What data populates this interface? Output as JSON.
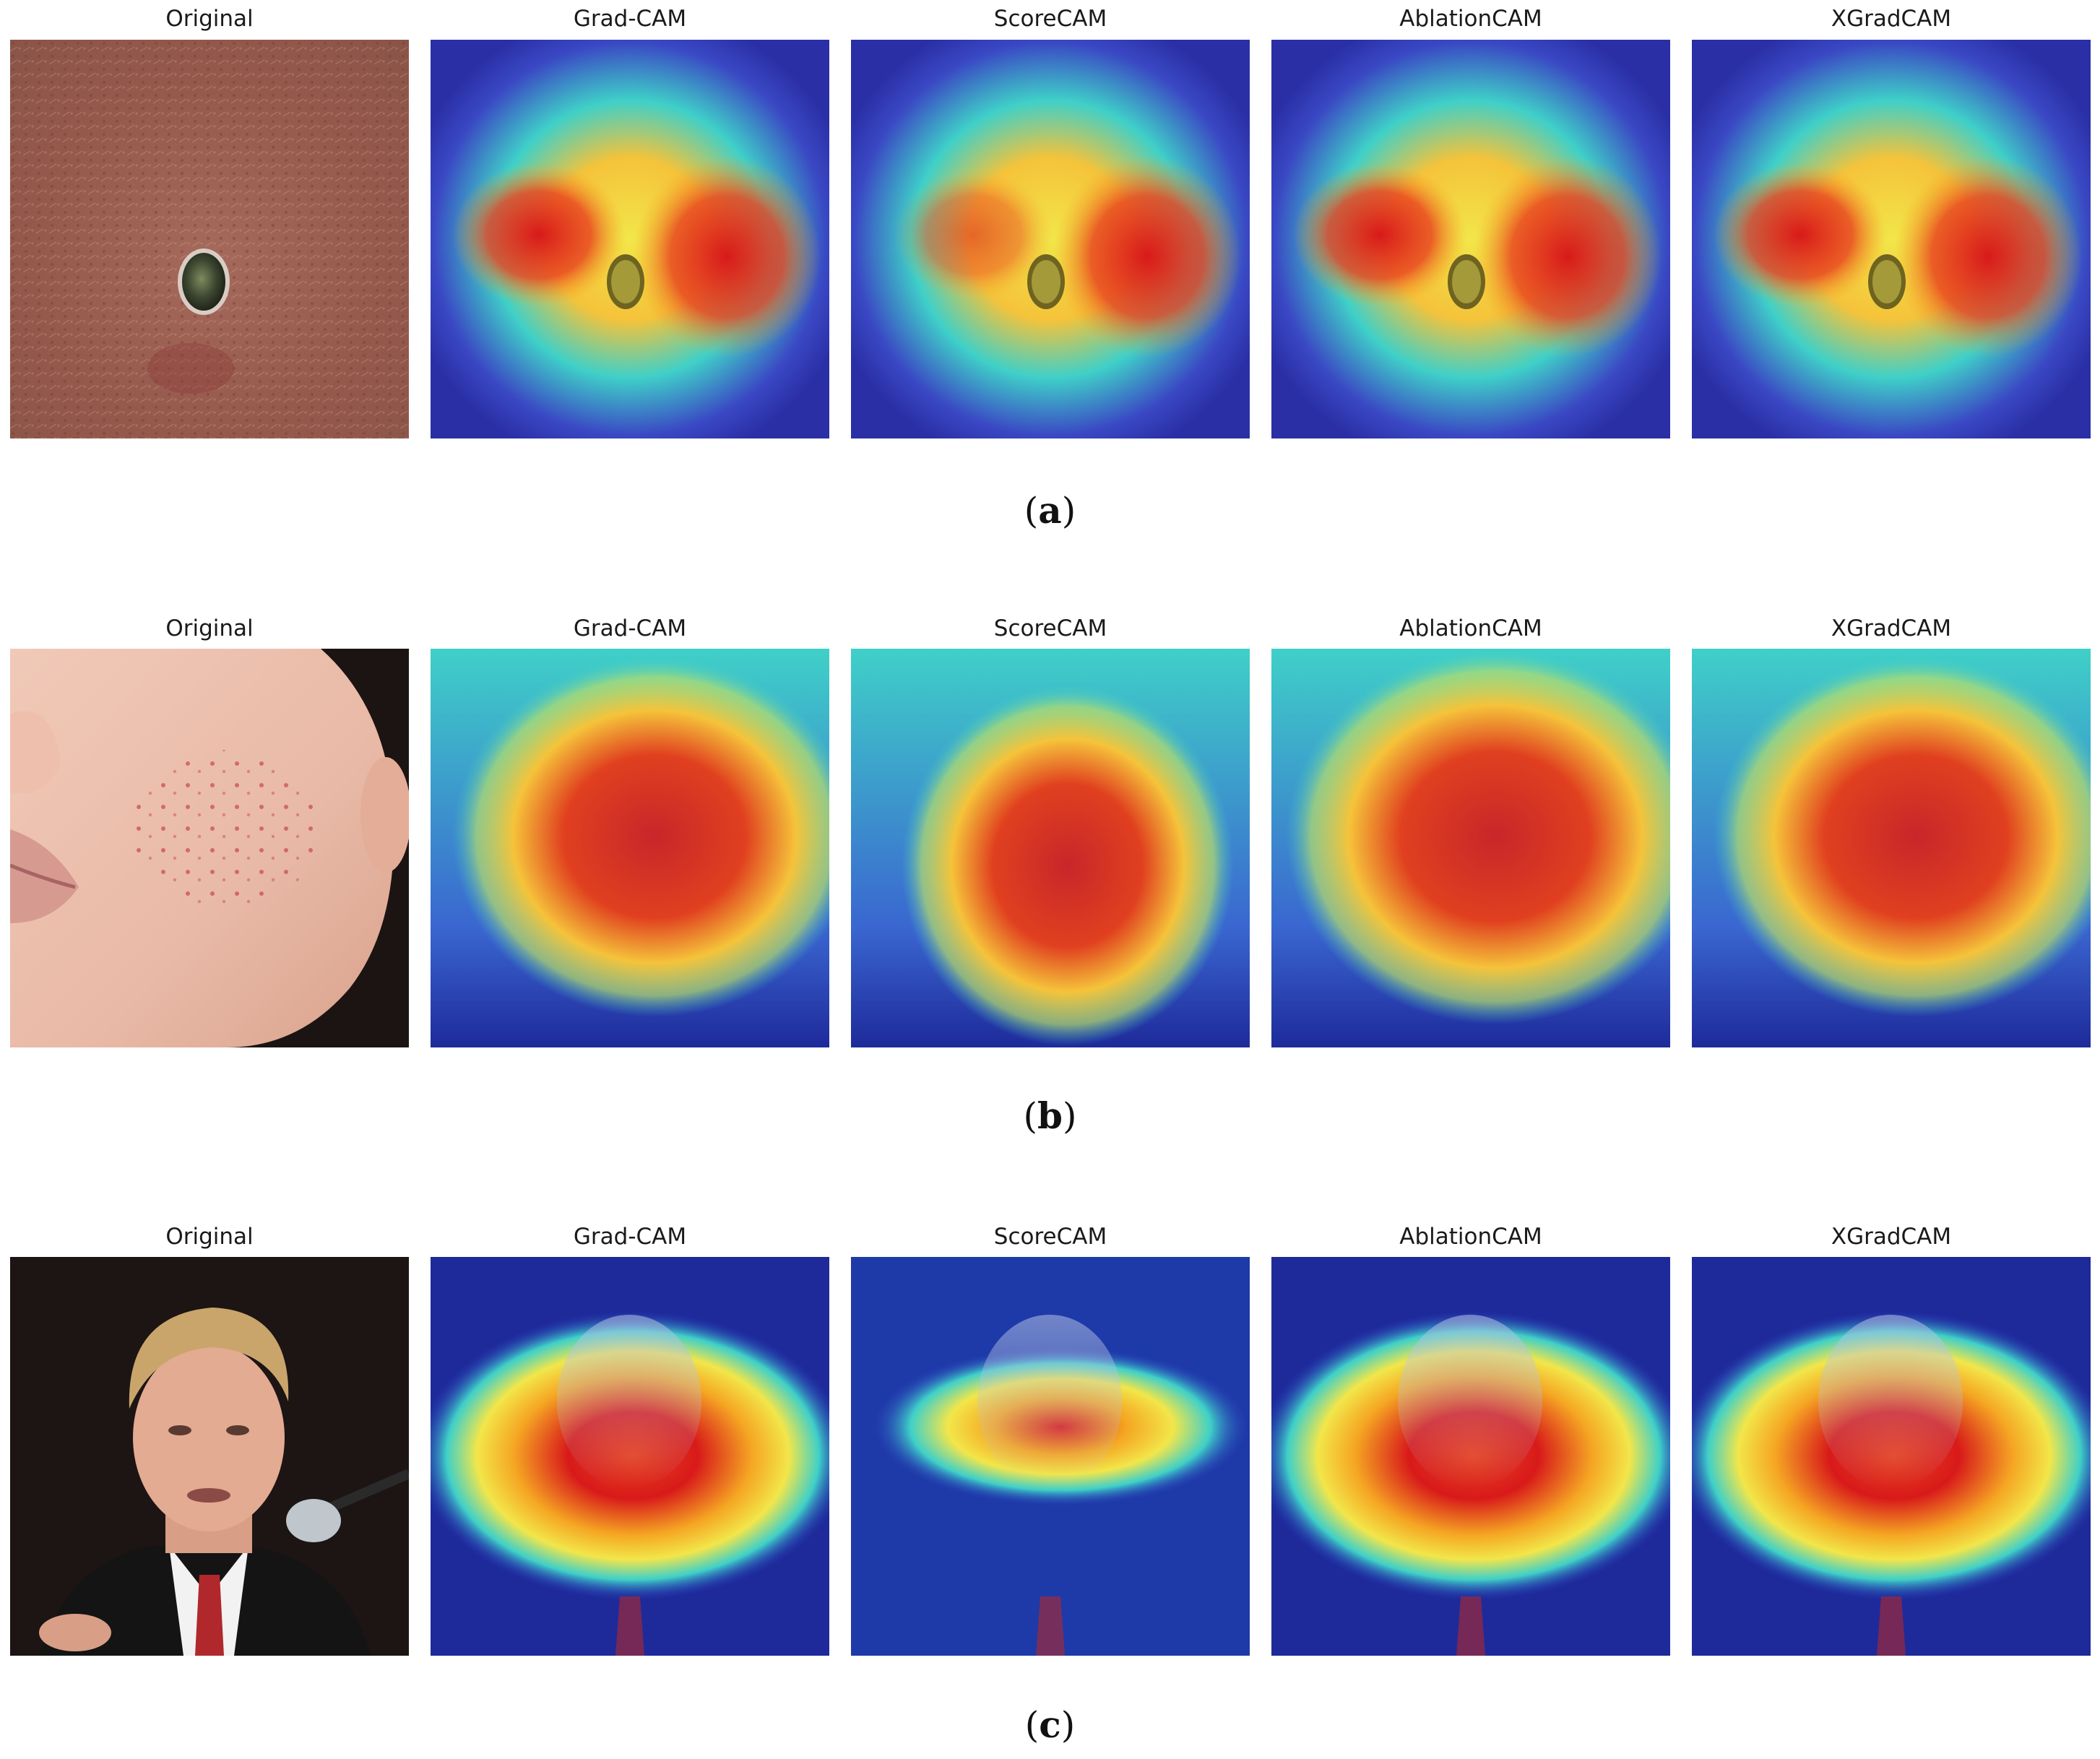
{
  "figure": {
    "rows": [
      {
        "label": "a",
        "subject": "skin-lesion",
        "panels": [
          {
            "title": "Original",
            "kind": "original"
          },
          {
            "title": "Grad-CAM",
            "kind": "heatmap"
          },
          {
            "title": "ScoreCAM",
            "kind": "heatmap"
          },
          {
            "title": "AblationCAM",
            "kind": "heatmap"
          },
          {
            "title": "XGradCAM",
            "kind": "heatmap"
          }
        ]
      },
      {
        "label": "b",
        "subject": "acne-cheek",
        "panels": [
          {
            "title": "Original",
            "kind": "original"
          },
          {
            "title": "Grad-CAM",
            "kind": "heatmap"
          },
          {
            "title": "ScoreCAM",
            "kind": "heatmap"
          },
          {
            "title": "AblationCAM",
            "kind": "heatmap"
          },
          {
            "title": "XGradCAM",
            "kind": "heatmap"
          }
        ]
      },
      {
        "label": "c",
        "subject": "face-portrait",
        "panels": [
          {
            "title": "Original",
            "kind": "original"
          },
          {
            "title": "Grad-CAM",
            "kind": "heatmap"
          },
          {
            "title": "ScoreCAM",
            "kind": "heatmap"
          },
          {
            "title": "AblationCAM",
            "kind": "heatmap"
          },
          {
            "title": "XGradCAM",
            "kind": "heatmap"
          }
        ]
      }
    ],
    "colors": {
      "heat_hot": "#d81a1a",
      "heat_warm": "#f5a623",
      "heat_mid": "#f2e64a",
      "heat_cool": "#3fd0c8",
      "heat_cold": "#2a2fb0",
      "heat_base": "#1e2a9a",
      "skin_lesion": "#9a6052",
      "acne_skin": "#e8b9a6",
      "portrait_bg": "#1d1414"
    }
  }
}
